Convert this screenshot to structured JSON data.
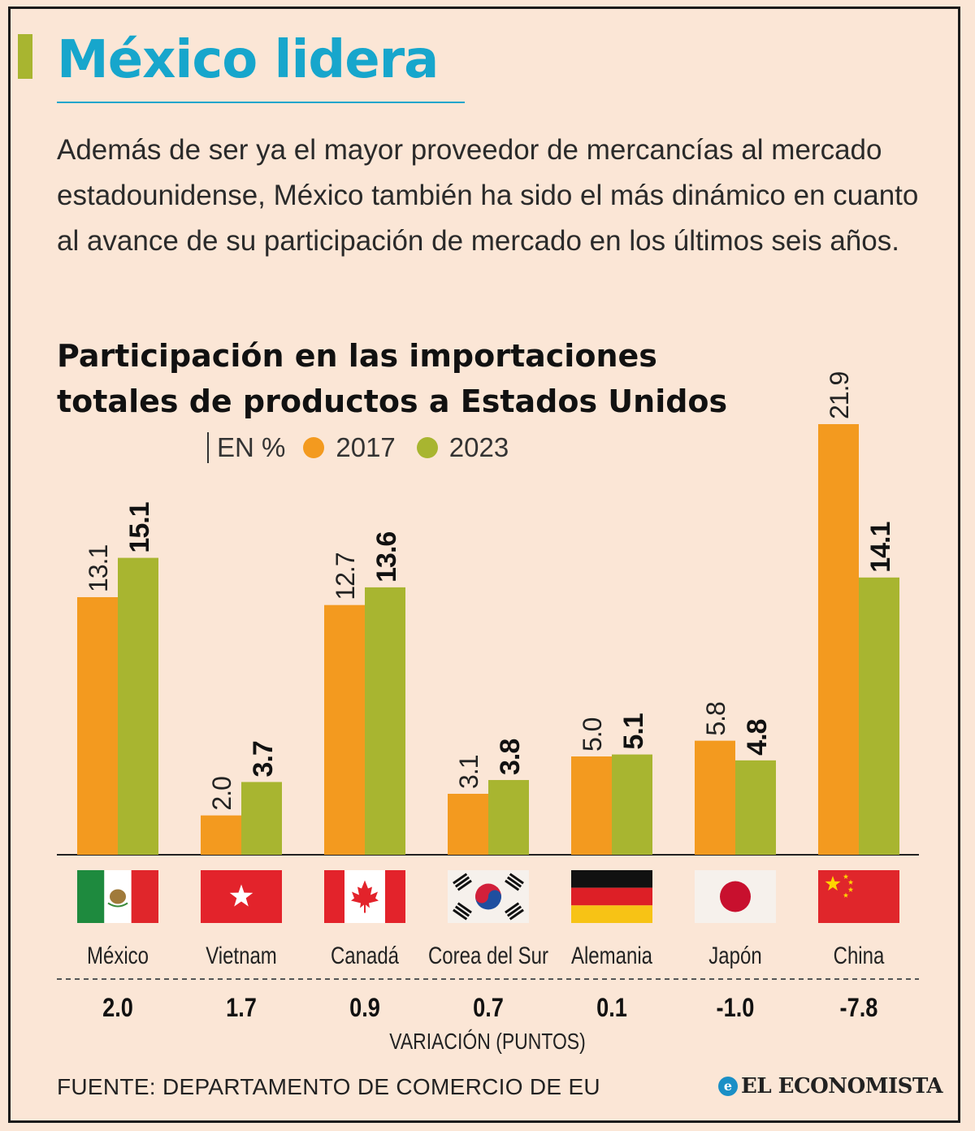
{
  "header": {
    "title": "México lidera",
    "intro": "Además de ser ya el mayor proveedor de mercancías al mercado estadounidense, México también ha sido el más dinámico en cuanto al avance de su participación de mercado en los últimos seis años."
  },
  "chart_title": "Participación en las importaciones totales de productos a Estados Unidos",
  "legend": {
    "unit": "EN %",
    "series_2017": "2017",
    "series_2023": "2023"
  },
  "colors": {
    "y2017": "#f39a1f",
    "y2023": "#a8b530",
    "accent": "#17a6cc",
    "background": "#fbe6d6"
  },
  "chart_data": {
    "type": "bar",
    "title": "Participación en las importaciones totales de productos a Estados Unidos",
    "ylabel": "EN %",
    "ylim": [
      0,
      22
    ],
    "categories": [
      "México",
      "Vietnam",
      "Canadá",
      "Corea del Sur",
      "Alemania",
      "Japón",
      "China"
    ],
    "flags": [
      "mexico-flag-icon",
      "vietnam-flag-icon",
      "canada-flag-icon",
      "south-korea-flag-icon",
      "germany-flag-icon",
      "japan-flag-icon",
      "china-flag-icon"
    ],
    "series": [
      {
        "name": "2017",
        "values": [
          13.1,
          2.0,
          12.7,
          3.1,
          5.0,
          5.8,
          21.9
        ],
        "labels": [
          "13.1",
          "2.0",
          "12.7",
          "3.1",
          "5.0",
          "5.8",
          "21.9"
        ]
      },
      {
        "name": "2023",
        "values": [
          15.1,
          3.7,
          13.6,
          3.8,
          5.1,
          4.8,
          14.1
        ],
        "labels": [
          "15.1",
          "3.7",
          "13.6",
          "3.8",
          "5.1",
          "4.8",
          "14.1"
        ]
      }
    ],
    "variation": [
      "2.0",
      "1.7",
      "0.9",
      "0.7",
      "0.1",
      "-1.0",
      "-7.8"
    ],
    "variation_label": "VARIACIÓN (PUNTOS)"
  },
  "footer": {
    "source": "FUENTE: DEPARTAMENTO DE COMERCIO DE EU",
    "brand": "EL ECONOMISTA"
  }
}
